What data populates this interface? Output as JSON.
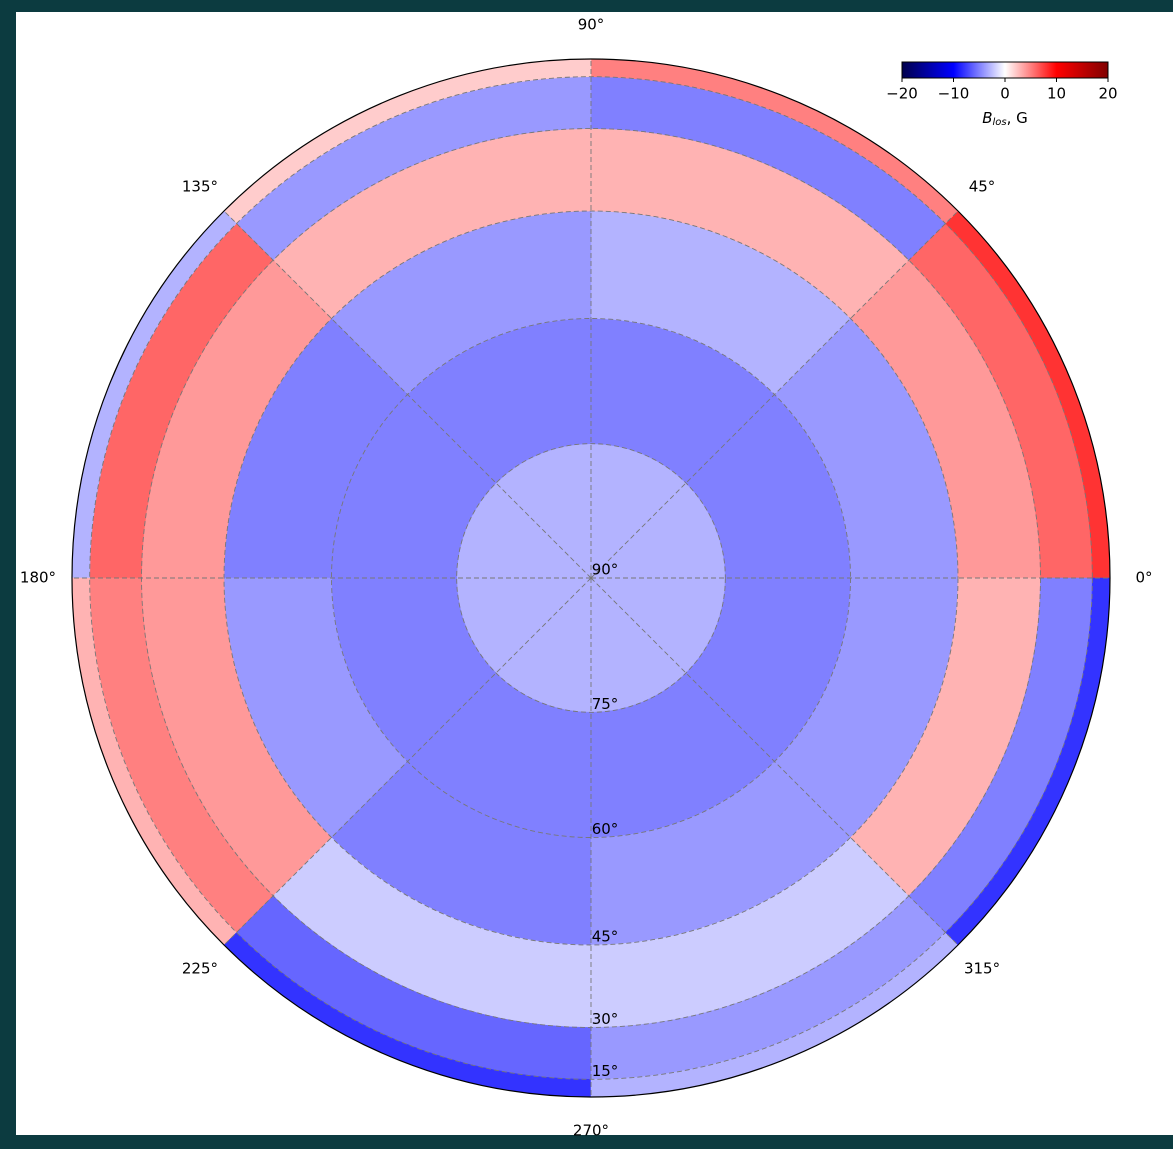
{
  "chart_data": {
    "type": "polar",
    "radial_scale": "cos",
    "rlim": [
      90,
      0
    ],
    "rticks": [
      {
        "value": 90,
        "label": "90°"
      },
      {
        "value": 75,
        "label": "75°"
      },
      {
        "value": 60,
        "label": "60°"
      },
      {
        "value": 45,
        "label": "45°"
      },
      {
        "value": 30,
        "label": "30°"
      },
      {
        "value": 15,
        "label": "15°"
      }
    ],
    "thetaticks": [
      {
        "value": 0,
        "label": "0°"
      },
      {
        "value": 45,
        "label": "45°"
      },
      {
        "value": 90,
        "label": "90°"
      },
      {
        "value": 135,
        "label": "135°"
      },
      {
        "value": 180,
        "label": "180°"
      },
      {
        "value": 225,
        "label": "225°"
      },
      {
        "value": 270,
        "label": "270°"
      },
      {
        "value": 315,
        "label": "315°"
      }
    ],
    "grid": true,
    "field": {
      "lat_edges": [
        90,
        75,
        60,
        45,
        30,
        15,
        0
      ],
      "lon_edges": [
        0,
        45,
        90,
        135,
        180,
        225,
        270,
        315,
        360
      ],
      "values": [
        [
          -3,
          -3,
          -3,
          -3,
          -3,
          -3,
          -3,
          -3
        ],
        [
          -5,
          -5,
          -5,
          -5,
          -5,
          -5,
          -5,
          -5
        ],
        [
          -4,
          -3,
          -4,
          -5,
          -4,
          -5,
          -4,
          -4
        ],
        [
          4,
          3,
          3,
          4,
          4,
          -2,
          -2,
          3
        ],
        [
          6,
          -5,
          -4,
          6,
          5,
          -6,
          -4,
          -5
        ],
        [
          8,
          5,
          2,
          -3,
          3,
          -8,
          -3,
          -8
        ]
      ]
    },
    "colormap": [
      "#00004c",
      "#0000ff",
      "#ffffff",
      "#ff0000",
      "#800000"
    ],
    "clim": [
      -20,
      20
    ],
    "cticks": [
      {
        "value": -20,
        "label": "−20"
      },
      {
        "value": -10,
        "label": "−10"
      },
      0,
      10,
      20
    ],
    "colorbar_label": {
      "symbol": "B",
      "subscript": "los",
      "unit": ", G"
    },
    "legend_position": "upper right"
  }
}
